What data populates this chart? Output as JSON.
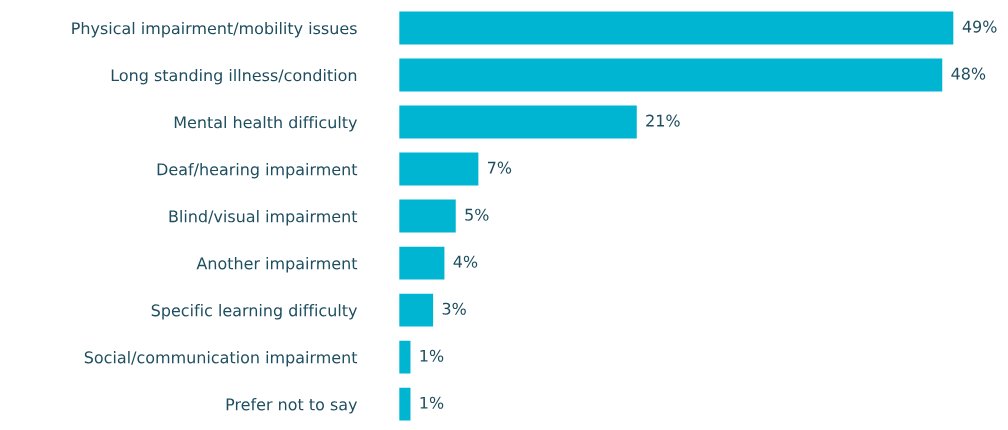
{
  "chart_data": {
    "type": "bar",
    "orientation": "horizontal",
    "categories": [
      "Physical impairment/mobility issues",
      "Long standing illness/condition",
      "Mental health difficulty",
      "Deaf/hearing impairment",
      "Blind/visual impairment",
      "Another impairment",
      "Specific learning difficulty",
      "Social/communication impairment",
      "Prefer not to say"
    ],
    "values": [
      49,
      48,
      21,
      7,
      5,
      4,
      3,
      1,
      1
    ],
    "value_labels": [
      "49%",
      "48%",
      "21%",
      "7%",
      "5%",
      "4%",
      "3%",
      "1%",
      "1%"
    ],
    "color": "#00b5d1",
    "grid": false,
    "legend": false
  }
}
